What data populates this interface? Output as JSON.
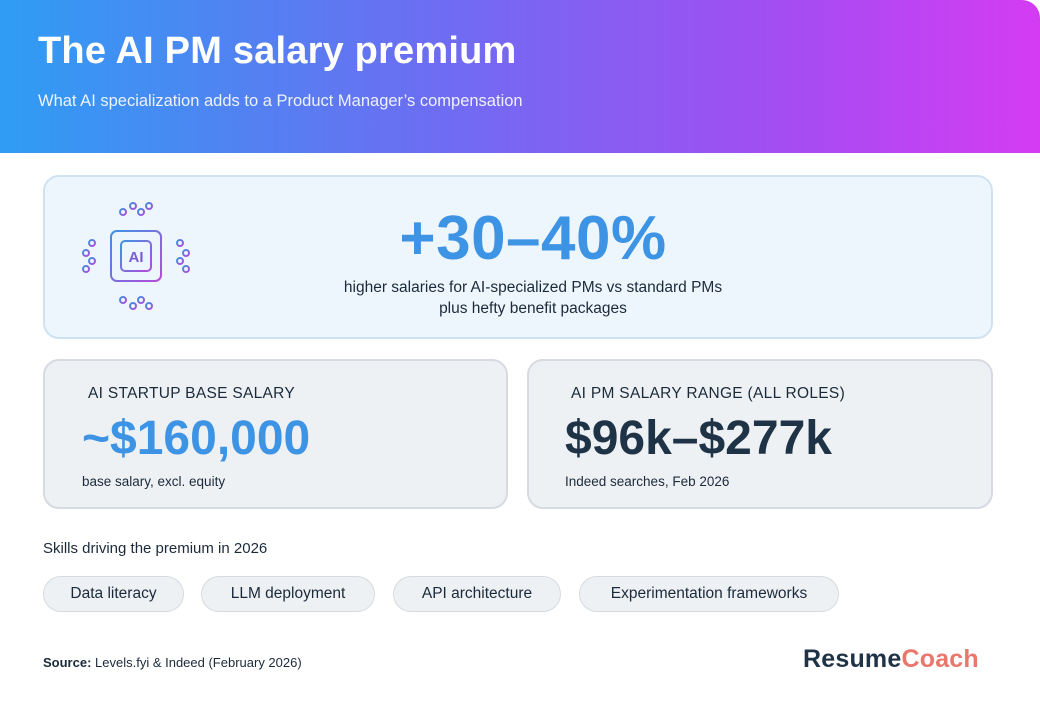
{
  "header": {
    "title": "The AI PM salary premium",
    "subtitle": "What AI specialization adds to a Product Manager’s compensation"
  },
  "hero": {
    "icon": "ai-chip-icon",
    "icon_label": "AI",
    "headline": "+30–40%",
    "line1": "higher salaries for AI-specialized PMs vs standard PMs",
    "line2": "plus hefty benefit packages"
  },
  "cards": {
    "startup": {
      "label": "AI STARTUP BASE SALARY",
      "value": "~$160,000",
      "note": "base salary, excl. equity"
    },
    "range": {
      "label": "AI PM SALARY RANGE (ALL ROLES)",
      "value": "$96k–$277k",
      "note": "Indeed searches, Feb 2026"
    }
  },
  "skills": {
    "title": "Skills driving the premium in 2026",
    "items": [
      "Data literacy",
      "LLM deployment",
      "API architecture",
      "Experimentation frameworks"
    ]
  },
  "footer": {
    "source_label": "Source:",
    "source_text": " Levels.fyi & Indeed (February 2026)",
    "brand_part1": "Resume",
    "brand_part2": "Coach"
  },
  "colors": {
    "accent_blue": "#3d93e4",
    "dark_navy": "#1f3346",
    "brand_coral": "#e9776c",
    "gradient_start": "#2f9df3",
    "gradient_end": "#d43cf2"
  }
}
